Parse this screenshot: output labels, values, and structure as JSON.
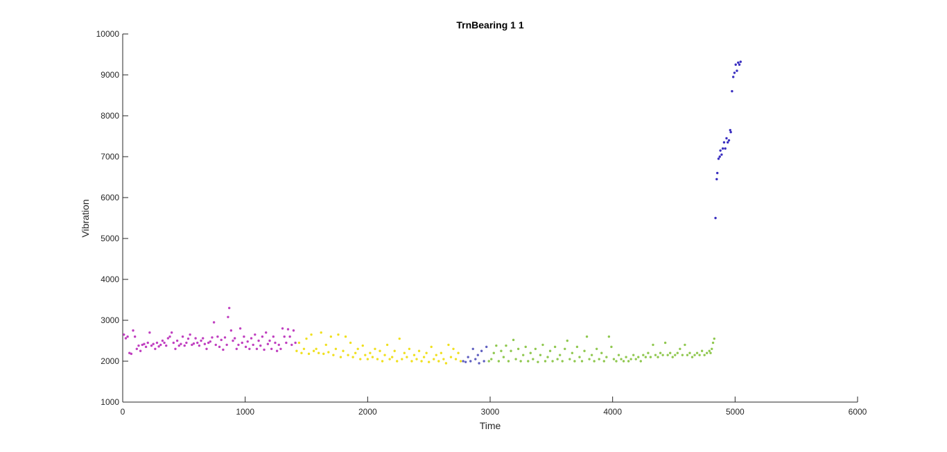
{
  "chart_data": {
    "type": "scatter",
    "title": "TrnBearing 1 1",
    "xlabel": "Time",
    "ylabel": "Vibration",
    "xlim": [
      0,
      6000
    ],
    "ylim": [
      1000,
      10000
    ],
    "xticks": [
      0,
      1000,
      2000,
      3000,
      4000,
      5000,
      6000
    ],
    "yticks": [
      1000,
      2000,
      3000,
      4000,
      5000,
      6000,
      7000,
      8000,
      9000,
      10000
    ],
    "xtick_labels": [
      "0",
      "1000",
      "2000",
      "3000",
      "4000",
      "5000",
      "6000"
    ],
    "ytick_labels": [
      "1000",
      "2000",
      "3000",
      "4000",
      "5000",
      "6000",
      "7000",
      "8000",
      "9000",
      "10000"
    ],
    "grid": false,
    "legend": "none",
    "series": [
      {
        "color": "#c040c0",
        "points": [
          [
            10,
            2650
          ],
          [
            25,
            2560
          ],
          [
            40,
            2600
          ],
          [
            55,
            2200
          ],
          [
            70,
            2180
          ],
          [
            85,
            2750
          ],
          [
            100,
            2600
          ],
          [
            115,
            2300
          ],
          [
            130,
            2380
          ],
          [
            145,
            2250
          ],
          [
            160,
            2400
          ],
          [
            175,
            2420
          ],
          [
            190,
            2350
          ],
          [
            205,
            2450
          ],
          [
            220,
            2700
          ],
          [
            235,
            2380
          ],
          [
            250,
            2420
          ],
          [
            265,
            2300
          ],
          [
            280,
            2450
          ],
          [
            295,
            2360
          ],
          [
            310,
            2400
          ],
          [
            325,
            2500
          ],
          [
            340,
            2450
          ],
          [
            355,
            2380
          ],
          [
            370,
            2560
          ],
          [
            385,
            2600
          ],
          [
            400,
            2700
          ],
          [
            415,
            2450
          ],
          [
            430,
            2300
          ],
          [
            445,
            2500
          ],
          [
            460,
            2380
          ],
          [
            475,
            2420
          ],
          [
            490,
            2600
          ],
          [
            505,
            2380
          ],
          [
            520,
            2450
          ],
          [
            535,
            2550
          ],
          [
            550,
            2650
          ],
          [
            565,
            2400
          ],
          [
            580,
            2430
          ],
          [
            595,
            2560
          ],
          [
            610,
            2450
          ],
          [
            625,
            2380
          ],
          [
            640,
            2500
          ],
          [
            655,
            2560
          ],
          [
            670,
            2420
          ],
          [
            685,
            2300
          ],
          [
            700,
            2450
          ],
          [
            715,
            2480
          ],
          [
            730,
            2580
          ],
          [
            745,
            2950
          ],
          [
            760,
            2400
          ],
          [
            775,
            2600
          ],
          [
            790,
            2350
          ],
          [
            805,
            2520
          ],
          [
            820,
            2280
          ],
          [
            835,
            2580
          ],
          [
            850,
            2400
          ],
          [
            860,
            3080
          ],
          [
            870,
            3300
          ],
          [
            885,
            2750
          ],
          [
            900,
            2500
          ],
          [
            915,
            2560
          ],
          [
            930,
            2300
          ],
          [
            945,
            2400
          ],
          [
            960,
            2800
          ],
          [
            975,
            2450
          ],
          [
            990,
            2600
          ],
          [
            1005,
            2350
          ],
          [
            1020,
            2480
          ],
          [
            1035,
            2300
          ],
          [
            1050,
            2560
          ],
          [
            1065,
            2400
          ],
          [
            1080,
            2650
          ],
          [
            1095,
            2300
          ],
          [
            1110,
            2500
          ],
          [
            1125,
            2380
          ],
          [
            1140,
            2600
          ],
          [
            1155,
            2280
          ],
          [
            1170,
            2700
          ],
          [
            1185,
            2420
          ],
          [
            1200,
            2500
          ],
          [
            1215,
            2300
          ],
          [
            1230,
            2600
          ],
          [
            1245,
            2450
          ],
          [
            1260,
            2250
          ],
          [
            1275,
            2400
          ],
          [
            1290,
            2300
          ],
          [
            1305,
            2800
          ],
          [
            1320,
            2600
          ],
          [
            1335,
            2450
          ],
          [
            1350,
            2780
          ],
          [
            1365,
            2600
          ],
          [
            1380,
            2400
          ],
          [
            1395,
            2750
          ],
          [
            1410,
            2450
          ]
        ]
      },
      {
        "color": "#f0e020",
        "points": [
          [
            1420,
            2250
          ],
          [
            1440,
            2450
          ],
          [
            1460,
            2200
          ],
          [
            1480,
            2300
          ],
          [
            1500,
            2550
          ],
          [
            1520,
            2180
          ],
          [
            1540,
            2650
          ],
          [
            1560,
            2250
          ],
          [
            1580,
            2300
          ],
          [
            1600,
            2200
          ],
          [
            1620,
            2700
          ],
          [
            1640,
            2180
          ],
          [
            1660,
            2400
          ],
          [
            1680,
            2220
          ],
          [
            1700,
            2600
          ],
          [
            1720,
            2150
          ],
          [
            1740,
            2300
          ],
          [
            1760,
            2650
          ],
          [
            1780,
            2100
          ],
          [
            1800,
            2250
          ],
          [
            1820,
            2600
          ],
          [
            1840,
            2150
          ],
          [
            1860,
            2450
          ],
          [
            1880,
            2100
          ],
          [
            1900,
            2200
          ],
          [
            1920,
            2300
          ],
          [
            1940,
            2050
          ],
          [
            1960,
            2380
          ],
          [
            1980,
            2150
          ],
          [
            2000,
            2050
          ],
          [
            2020,
            2200
          ],
          [
            2040,
            2100
          ],
          [
            2060,
            2300
          ],
          [
            2080,
            2050
          ],
          [
            2100,
            2250
          ],
          [
            2120,
            2000
          ],
          [
            2140,
            2150
          ],
          [
            2160,
            2400
          ],
          [
            2180,
            2050
          ],
          [
            2200,
            2100
          ],
          [
            2220,
            2250
          ],
          [
            2240,
            2000
          ],
          [
            2260,
            2550
          ],
          [
            2280,
            2050
          ],
          [
            2300,
            2200
          ],
          [
            2320,
            2100
          ],
          [
            2340,
            2300
          ],
          [
            2360,
            2000
          ],
          [
            2380,
            2150
          ],
          [
            2400,
            2050
          ],
          [
            2420,
            2250
          ],
          [
            2440,
            2000
          ],
          [
            2460,
            2100
          ],
          [
            2480,
            2200
          ],
          [
            2500,
            1980
          ],
          [
            2520,
            2350
          ],
          [
            2540,
            2050
          ],
          [
            2560,
            2150
          ],
          [
            2580,
            2000
          ],
          [
            2600,
            2200
          ],
          [
            2620,
            2050
          ],
          [
            2640,
            1950
          ],
          [
            2660,
            2400
          ],
          [
            2680,
            2100
          ],
          [
            2700,
            2300
          ],
          [
            2720,
            2050
          ],
          [
            2740,
            2200
          ],
          [
            2760,
            2000
          ]
        ]
      },
      {
        "color": "#6060c0",
        "points": [
          [
            2780,
            2000
          ],
          [
            2800,
            1980
          ],
          [
            2820,
            2100
          ],
          [
            2840,
            2000
          ],
          [
            2860,
            2300
          ],
          [
            2880,
            2050
          ],
          [
            2900,
            2150
          ],
          [
            2910,
            1950
          ],
          [
            2930,
            2250
          ],
          [
            2950,
            2000
          ],
          [
            2970,
            2350
          ]
        ]
      },
      {
        "color": "#90c850",
        "points": [
          [
            2990,
            2000
          ],
          [
            3010,
            2050
          ],
          [
            3030,
            2200
          ],
          [
            3050,
            2380
          ],
          [
            3070,
            2000
          ],
          [
            3090,
            2250
          ],
          [
            3110,
            2100
          ],
          [
            3130,
            2380
          ],
          [
            3150,
            2000
          ],
          [
            3170,
            2250
          ],
          [
            3190,
            2520
          ],
          [
            3210,
            2050
          ],
          [
            3230,
            2300
          ],
          [
            3250,
            2000
          ],
          [
            3270,
            2150
          ],
          [
            3290,
            2350
          ],
          [
            3310,
            2000
          ],
          [
            3330,
            2200
          ],
          [
            3350,
            2050
          ],
          [
            3370,
            2300
          ],
          [
            3390,
            1980
          ],
          [
            3410,
            2150
          ],
          [
            3430,
            2400
          ],
          [
            3450,
            2000
          ],
          [
            3470,
            2100
          ],
          [
            3490,
            2250
          ],
          [
            3510,
            2000
          ],
          [
            3530,
            2350
          ],
          [
            3550,
            2050
          ],
          [
            3570,
            2150
          ],
          [
            3590,
            2000
          ],
          [
            3610,
            2300
          ],
          [
            3630,
            2500
          ],
          [
            3650,
            2050
          ],
          [
            3670,
            2200
          ],
          [
            3690,
            2000
          ],
          [
            3710,
            2350
          ],
          [
            3730,
            2100
          ],
          [
            3750,
            2000
          ],
          [
            3770,
            2250
          ],
          [
            3790,
            2600
          ],
          [
            3810,
            2050
          ],
          [
            3830,
            2150
          ],
          [
            3850,
            2000
          ],
          [
            3870,
            2300
          ],
          [
            3890,
            2050
          ],
          [
            3910,
            2200
          ],
          [
            3930,
            2000
          ],
          [
            3950,
            2100
          ],
          [
            3970,
            2600
          ],
          [
            3990,
            2350
          ],
          [
            4010,
            2050
          ],
          [
            4030,
            2000
          ],
          [
            4050,
            2150
          ],
          [
            4070,
            2050
          ],
          [
            4090,
            2000
          ],
          [
            4110,
            2100
          ],
          [
            4130,
            2000
          ],
          [
            4150,
            2050
          ],
          [
            4170,
            2150
          ],
          [
            4190,
            2050
          ],
          [
            4210,
            2100
          ],
          [
            4230,
            2000
          ],
          [
            4250,
            2150
          ],
          [
            4270,
            2100
          ],
          [
            4290,
            2200
          ],
          [
            4310,
            2100
          ],
          [
            4330,
            2400
          ],
          [
            4350,
            2150
          ],
          [
            4370,
            2100
          ],
          [
            4390,
            2200
          ],
          [
            4410,
            2150
          ],
          [
            4430,
            2450
          ],
          [
            4450,
            2150
          ],
          [
            4470,
            2200
          ],
          [
            4490,
            2100
          ],
          [
            4510,
            2150
          ],
          [
            4530,
            2200
          ],
          [
            4550,
            2300
          ],
          [
            4570,
            2150
          ],
          [
            4590,
            2400
          ],
          [
            4610,
            2150
          ],
          [
            4630,
            2200
          ],
          [
            4650,
            2100
          ],
          [
            4670,
            2150
          ],
          [
            4690,
            2200
          ],
          [
            4710,
            2150
          ],
          [
            4730,
            2250
          ],
          [
            4750,
            2150
          ],
          [
            4770,
            2200
          ],
          [
            4790,
            2250
          ],
          [
            4800,
            2200
          ],
          [
            4810,
            2300
          ],
          [
            4820,
            2450
          ],
          [
            4830,
            2550
          ]
        ]
      },
      {
        "color": "#3a2fc0",
        "points": [
          [
            4840,
            5500
          ],
          [
            4850,
            6450
          ],
          [
            4855,
            6600
          ],
          [
            4865,
            6950
          ],
          [
            4875,
            7000
          ],
          [
            4880,
            7150
          ],
          [
            4890,
            7050
          ],
          [
            4900,
            7200
          ],
          [
            4910,
            7350
          ],
          [
            4920,
            7200
          ],
          [
            4930,
            7450
          ],
          [
            4940,
            7350
          ],
          [
            4950,
            7400
          ],
          [
            4960,
            7650
          ],
          [
            4965,
            7600
          ],
          [
            4975,
            8600
          ],
          [
            4985,
            8950
          ],
          [
            4995,
            9050
          ],
          [
            5005,
            9250
          ],
          [
            5015,
            9100
          ],
          [
            5025,
            9300
          ],
          [
            5035,
            9250
          ],
          [
            5045,
            9320
          ]
        ]
      }
    ]
  }
}
